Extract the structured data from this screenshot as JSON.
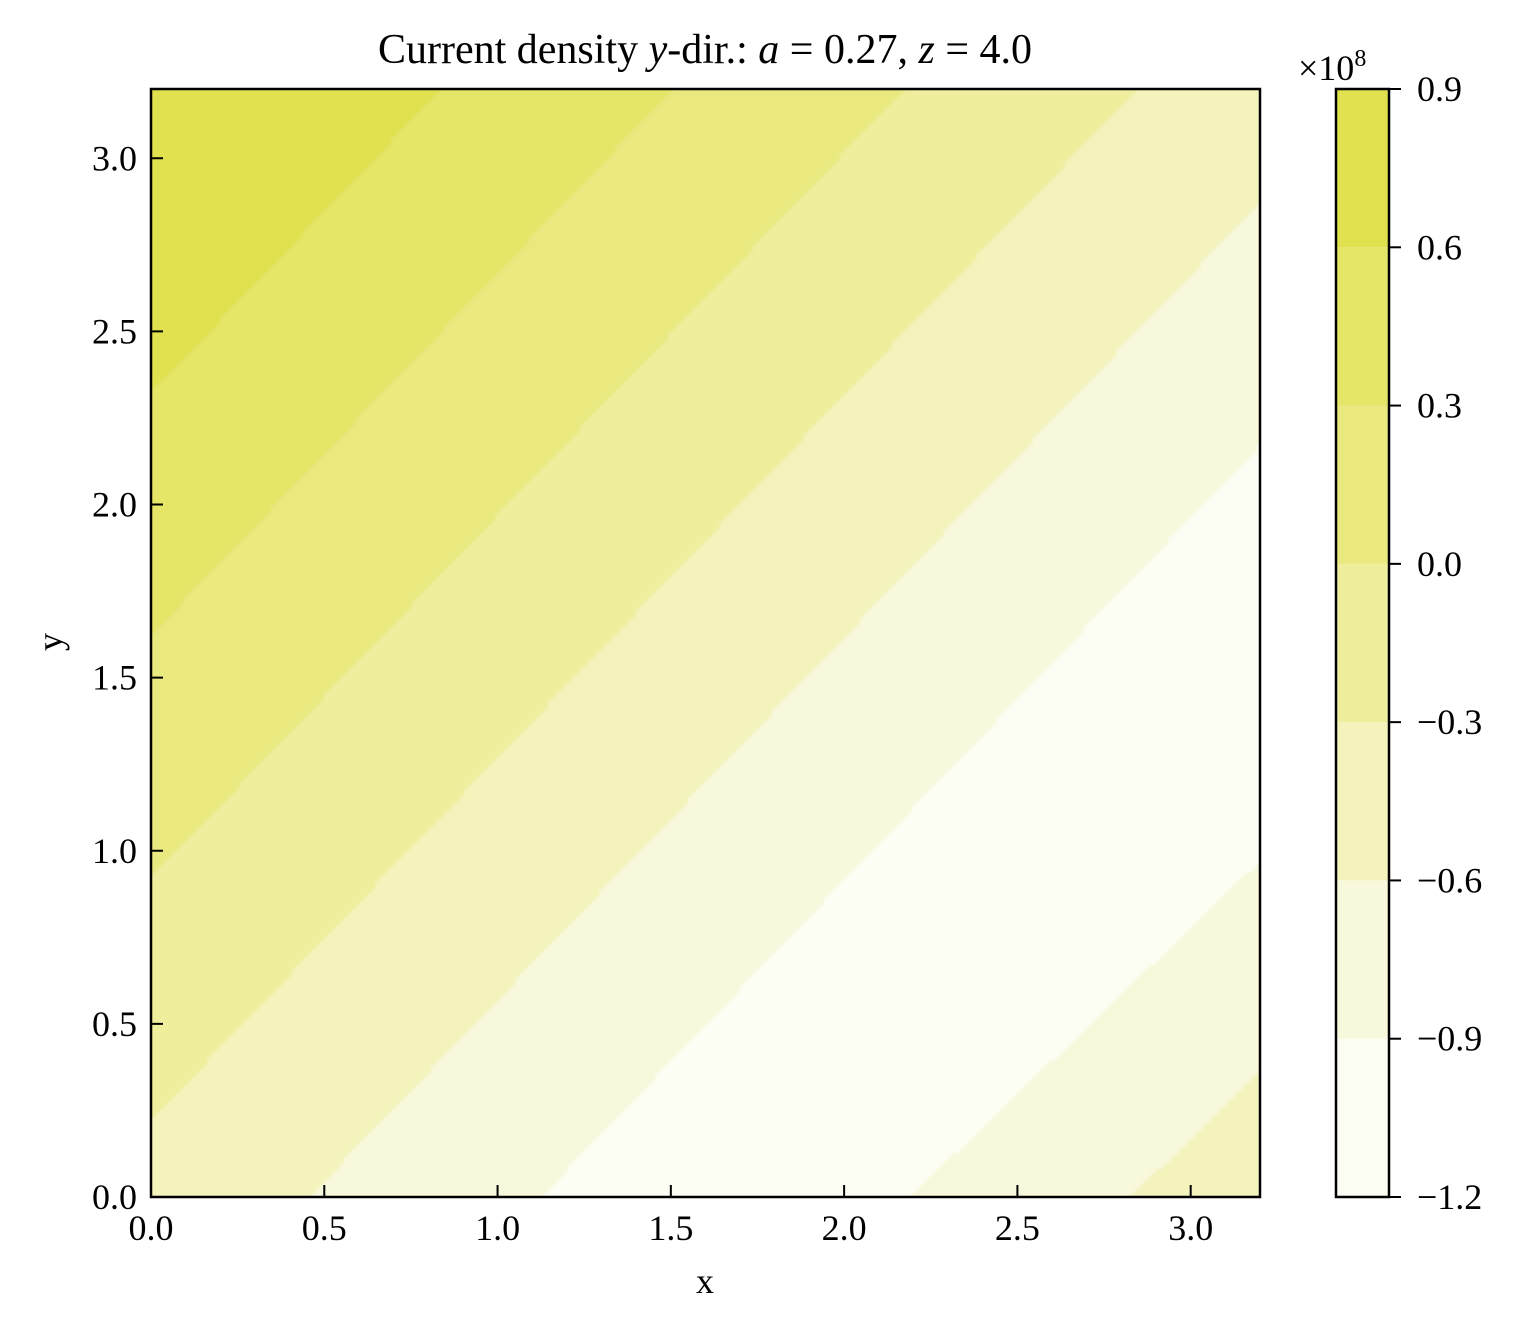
{
  "chart_data": {
    "type": "contourf",
    "title_parts": [
      "Current density ",
      "y",
      "-dir.: ",
      "a",
      " = 0.27, ",
      "z",
      " = 4.0"
    ],
    "xlabel": "x",
    "ylabel": "y",
    "xlim": [
      0.0,
      3.2
    ],
    "ylim": [
      0.0,
      3.2
    ],
    "xticks": [
      0.0,
      0.5,
      1.0,
      1.5,
      2.0,
      2.5,
      3.0
    ],
    "yticks": [
      0.0,
      0.5,
      1.0,
      1.5,
      2.0,
      2.5,
      3.0
    ],
    "xtick_labels": [
      "0.0",
      "0.5",
      "1.0",
      "1.5",
      "2.0",
      "2.5",
      "3.0"
    ],
    "ytick_labels": [
      "0.0",
      "0.5",
      "1.0",
      "1.5",
      "2.0",
      "2.5",
      "3.0"
    ],
    "colorbar": {
      "scale_base": "×10",
      "scale_exponent": "8",
      "levels": [
        -1.2,
        -0.9,
        -0.6,
        -0.3,
        0.0,
        0.3,
        0.6,
        0.9
      ],
      "tick_labels": [
        "−1.2",
        "−0.9",
        "−0.6",
        "−0.3",
        "0.0",
        "0.3",
        "0.6",
        "0.9"
      ],
      "band_colors": [
        "#fdfef3",
        "#f8f8dc",
        "#f3f3bb",
        "#eeee9c",
        "#e9e980",
        "#e5e568",
        "#e1e150"
      ]
    },
    "field_model": {
      "description_units": "values in units of 1e8",
      "min_value": -1.16,
      "min_location": [
        2.6,
        0.93
      ],
      "max_region": "upper-left",
      "max_value": 0.85
    }
  }
}
